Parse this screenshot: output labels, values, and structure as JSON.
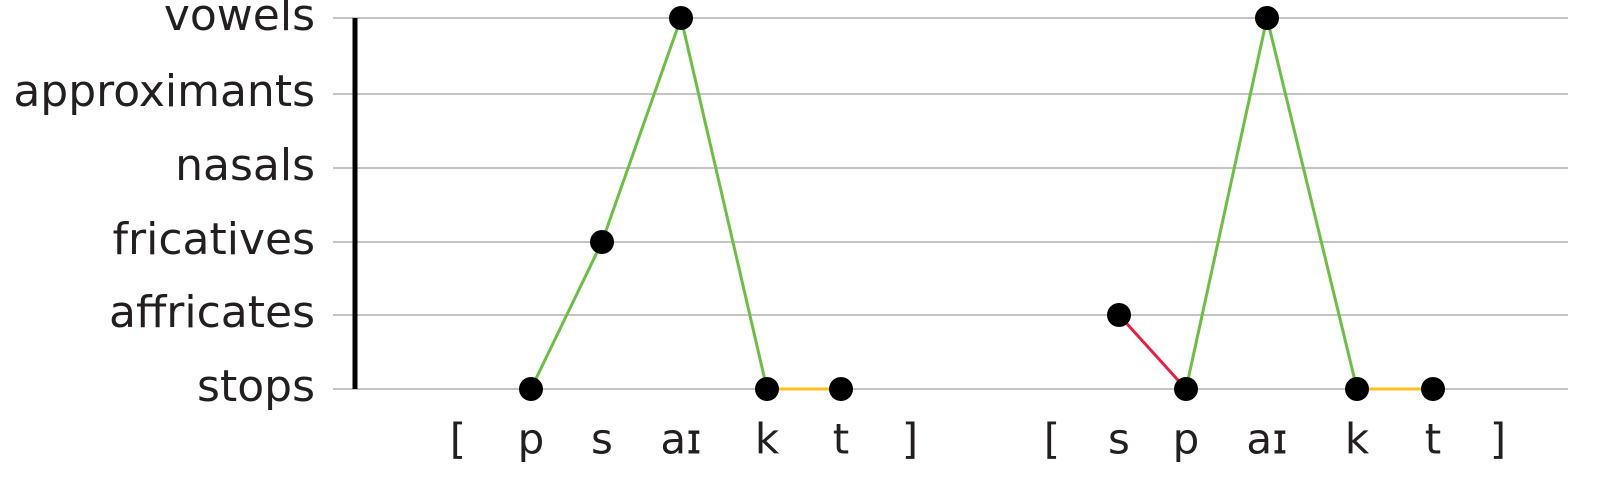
{
  "levels": [
    "vowels",
    "approximants",
    "nasals",
    "fricatives",
    "affricates",
    "stops"
  ],
  "words": [
    {
      "open": "[",
      "close": "]",
      "segments": [
        {
          "label": "p",
          "level": "stops"
        },
        {
          "label": "s",
          "level": "fricatives"
        },
        {
          "label": "aɪ",
          "level": "vowels"
        },
        {
          "label": "k",
          "level": "stops"
        },
        {
          "label": "t",
          "level": "stops"
        }
      ],
      "link_colors": [
        "#6cbe45",
        "#6cbe45",
        "#6cbe45",
        "#f7c21b"
      ]
    },
    {
      "open": "[",
      "close": "]",
      "segments": [
        {
          "label": "s",
          "level": "affricates"
        },
        {
          "label": "p",
          "level": "stops"
        },
        {
          "label": "aɪ",
          "level": "vowels"
        },
        {
          "label": "k",
          "level": "stops"
        },
        {
          "label": "t",
          "level": "stops"
        }
      ],
      "link_colors": [
        "#e4223f",
        "#6cbe45",
        "#6cbe45",
        "#f7c21b"
      ]
    }
  ]
}
